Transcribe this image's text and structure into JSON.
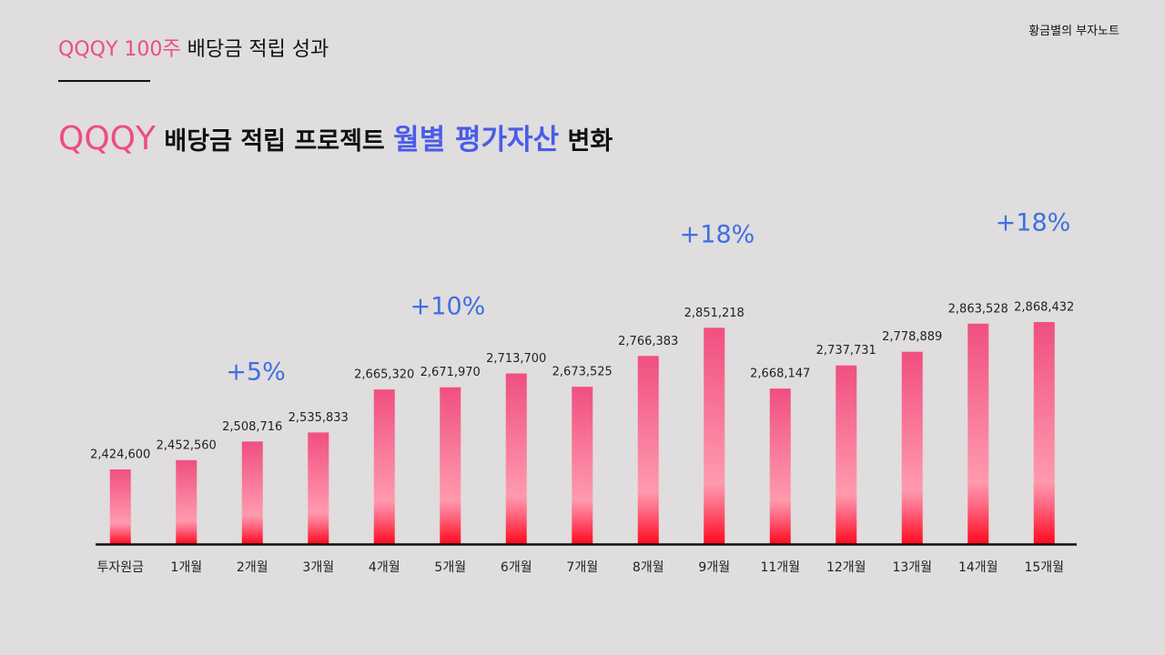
{
  "brand": "황금별의 부자노트",
  "header": {
    "title_highlight": "QQQY 100주",
    "title_rest": "배당금 적립 성과"
  },
  "chart_data": {
    "type": "bar",
    "title_parts": [
      "QQQY",
      "배당금 적립 프로젝트",
      "월별 평가자산",
      "변화"
    ],
    "categories": [
      "투자원금",
      "1개월",
      "2개월",
      "3개월",
      "4개월",
      "5개월",
      "6개월",
      "7개월",
      "8개월",
      "9개월",
      "11개월",
      "12개월",
      "13개월",
      "14개월",
      "15개월"
    ],
    "values": [
      2424600,
      2452560,
      2508716,
      2535833,
      2665320,
      2671970,
      2713700,
      2673525,
      2766383,
      2851218,
      2668147,
      2737731,
      2778889,
      2863528,
      2868432
    ],
    "value_labels": [
      "2,424,600",
      "2,452,560",
      "2,508,716",
      "2,535,833",
      "2,665,320",
      "2,671,970",
      "2,713,700",
      "2,673,525",
      "2,766,383",
      "2,851,218",
      "2,668,147",
      "2,737,731",
      "2,778,889",
      "2,863,528",
      "2,868,432"
    ],
    "annotations": [
      "+5%",
      "+10%",
      "+18%",
      "+18%"
    ],
    "color": "#f04f80",
    "ylim": [
      2200000,
      3000000
    ]
  }
}
